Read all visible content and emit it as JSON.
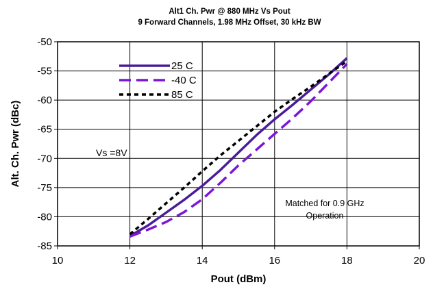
{
  "chart_data": {
    "type": "line",
    "title": "Alt1 Ch. Pwr @ 880 MHz Vs Pout",
    "subtitle": "9 Forward Channels, 1.98 MHz Offset, 30   kHz BW",
    "xlabel": "Pout (dBm)",
    "ylabel": "Alt. Ch. Pwr (dBc)",
    "xlim": [
      10,
      20
    ],
    "ylim": [
      -85,
      -50
    ],
    "xticks": [
      "10",
      "12",
      "14",
      "16",
      "18",
      "20"
    ],
    "yticks": [
      "-50",
      "-55",
      "-60",
      "-65",
      "-70",
      "-75",
      "-80",
      "-85"
    ],
    "grid": true,
    "legend_position": "top-left",
    "series": [
      {
        "name": "25 C",
        "color": "#4b1c9a",
        "style": "solid",
        "x": [
          12,
          12.5,
          13,
          13.5,
          14,
          14.5,
          15,
          15.5,
          16,
          16.5,
          17,
          17.5,
          18
        ],
        "y": [
          -83.3,
          -81.5,
          -79.3,
          -77.1,
          -74.7,
          -72.0,
          -69.0,
          -66.0,
          -63.3,
          -60.8,
          -58.2,
          -55.6,
          -52.8
        ]
      },
      {
        "name": "-40 C",
        "color": "#7b16d8",
        "style": "dashed",
        "x": [
          12,
          12.5,
          13,
          13.5,
          14,
          14.5,
          15,
          15.5,
          16,
          16.5,
          17,
          17.5,
          18
        ],
        "y": [
          -83.4,
          -82.2,
          -80.9,
          -79.2,
          -77.0,
          -74.2,
          -71.2,
          -68.5,
          -65.8,
          -63.1,
          -60.2,
          -57.0,
          -53.8
        ]
      },
      {
        "name": "85 C",
        "color": "#000000",
        "style": "dotted",
        "x": [
          12,
          12.5,
          13,
          13.5,
          14,
          14.5,
          15,
          15.5,
          16,
          16.5,
          17,
          17.5,
          18
        ],
        "y": [
          -83.0,
          -80.4,
          -77.7,
          -75.0,
          -72.2,
          -69.5,
          -67.0,
          -64.5,
          -62.0,
          -59.8,
          -57.7,
          -55.5,
          -53.3
        ]
      }
    ],
    "annotations": [
      {
        "text": "Vs =8V"
      },
      {
        "text": "Matched for 0.9 GHz"
      },
      {
        "text": "Operation"
      }
    ]
  }
}
